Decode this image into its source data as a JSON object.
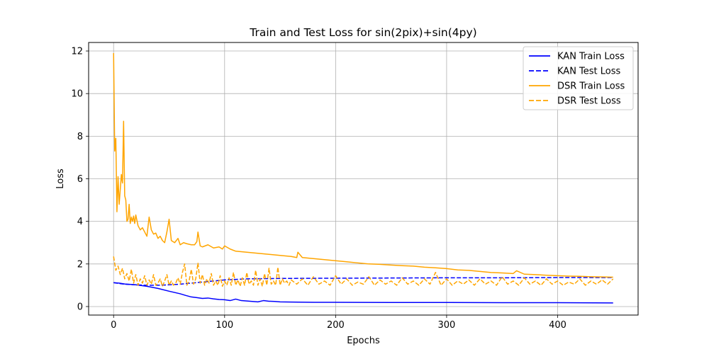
{
  "chart_data": {
    "type": "line",
    "title": "Train and Test Loss for sin(2pix)+sin(4py)",
    "xlabel": "Epochs",
    "ylabel": "Loss",
    "xlim": [
      -22.5,
      472.5
    ],
    "ylim": [
      -0.4,
      12.4
    ],
    "xticks": [
      0,
      100,
      200,
      300,
      400
    ],
    "yticks": [
      0,
      2,
      4,
      6,
      8,
      10,
      12
    ],
    "grid": true,
    "legend_position": "top-right",
    "series": [
      {
        "name": "KAN Train Loss",
        "color": "#0000ff",
        "style": "solid",
        "x": [
          0,
          5,
          10,
          20,
          30,
          40,
          50,
          60,
          65,
          70,
          75,
          80,
          85,
          90,
          95,
          100,
          105,
          110,
          115,
          120,
          125,
          130,
          135,
          140,
          145,
          150,
          160,
          180,
          200,
          250,
          300,
          350,
          400,
          450
        ],
        "y": [
          1.12,
          1.1,
          1.06,
          1.02,
          0.95,
          0.85,
          0.72,
          0.6,
          0.52,
          0.45,
          0.42,
          0.38,
          0.4,
          0.36,
          0.33,
          0.32,
          0.28,
          0.35,
          0.28,
          0.26,
          0.24,
          0.22,
          0.28,
          0.25,
          0.24,
          0.22,
          0.21,
          0.2,
          0.2,
          0.19,
          0.19,
          0.18,
          0.18,
          0.17
        ]
      },
      {
        "name": "KAN Test Loss",
        "color": "#0000ff",
        "style": "dashed",
        "x": [
          0,
          5,
          10,
          20,
          30,
          40,
          50,
          60,
          70,
          80,
          90,
          100,
          120,
          150,
          200,
          250,
          300,
          350,
          400,
          450
        ],
        "y": [
          1.12,
          1.08,
          1.05,
          1.02,
          1.0,
          1.0,
          1.02,
          1.05,
          1.1,
          1.15,
          1.2,
          1.25,
          1.3,
          1.32,
          1.33,
          1.34,
          1.35,
          1.35,
          1.36,
          1.36
        ]
      },
      {
        "name": "DSR Train Loss",
        "color": "#ffa500",
        "style": "solid",
        "x": [
          0,
          1,
          2,
          3,
          4,
          5,
          6,
          7,
          8,
          9,
          10,
          11,
          12,
          13,
          14,
          15,
          16,
          17,
          18,
          19,
          20,
          22,
          24,
          26,
          28,
          30,
          32,
          34,
          36,
          38,
          40,
          42,
          44,
          46,
          48,
          50,
          52,
          55,
          58,
          60,
          63,
          66,
          70,
          73,
          75,
          76,
          78,
          80,
          85,
          90,
          95,
          98,
          100,
          105,
          110,
          120,
          130,
          140,
          150,
          160,
          165,
          166,
          170,
          180,
          190,
          200,
          210,
          220,
          230,
          240,
          250,
          260,
          270,
          280,
          290,
          300,
          310,
          320,
          330,
          340,
          350,
          360,
          363,
          370,
          380,
          390,
          400,
          410,
          420,
          430,
          440,
          450
        ],
        "y": [
          11.9,
          7.3,
          7.9,
          4.45,
          6.1,
          4.8,
          5.5,
          6.2,
          5.8,
          8.7,
          5.2,
          5.0,
          4.0,
          4.1,
          4.8,
          3.9,
          4.2,
          4.0,
          4.25,
          3.9,
          4.3,
          3.8,
          3.6,
          3.7,
          3.5,
          3.3,
          4.2,
          3.6,
          3.4,
          3.45,
          3.2,
          3.3,
          3.1,
          3.0,
          3.5,
          4.1,
          3.1,
          3.0,
          3.2,
          2.9,
          3.0,
          2.95,
          2.9,
          2.9,
          3.05,
          3.5,
          2.85,
          2.8,
          2.9,
          2.75,
          2.8,
          2.7,
          2.85,
          2.7,
          2.6,
          2.55,
          2.5,
          2.45,
          2.4,
          2.35,
          2.3,
          2.55,
          2.3,
          2.25,
          2.2,
          2.15,
          2.1,
          2.05,
          2.0,
          1.98,
          1.95,
          1.92,
          1.9,
          1.85,
          1.82,
          1.78,
          1.72,
          1.7,
          1.65,
          1.6,
          1.58,
          1.55,
          1.68,
          1.52,
          1.5,
          1.47,
          1.45,
          1.43,
          1.42,
          1.4,
          1.39,
          1.38
        ]
      },
      {
        "name": "DSR Test Loss",
        "color": "#ffa500",
        "style": "dashed",
        "x": [
          0,
          2,
          4,
          6,
          8,
          10,
          12,
          14,
          16,
          18,
          20,
          22,
          24,
          26,
          28,
          30,
          32,
          34,
          36,
          38,
          40,
          42,
          44,
          46,
          48,
          50,
          52,
          54,
          56,
          58,
          60,
          62,
          64,
          66,
          68,
          70,
          72,
          74,
          76,
          78,
          80,
          82,
          84,
          86,
          88,
          90,
          92,
          94,
          96,
          98,
          100,
          102,
          104,
          106,
          108,
          110,
          112,
          114,
          116,
          118,
          120,
          122,
          124,
          126,
          128,
          130,
          132,
          134,
          136,
          138,
          140,
          142,
          144,
          146,
          148,
          150,
          152,
          154,
          156,
          158,
          160,
          165,
          170,
          175,
          180,
          185,
          190,
          195,
          200,
          205,
          210,
          215,
          220,
          225,
          230,
          235,
          240,
          245,
          250,
          255,
          260,
          265,
          270,
          275,
          280,
          285,
          290,
          295,
          300,
          305,
          310,
          315,
          320,
          325,
          330,
          335,
          340,
          345,
          350,
          355,
          360,
          365,
          370,
          375,
          380,
          385,
          390,
          395,
          400,
          405,
          410,
          415,
          420,
          425,
          430,
          435,
          440,
          445,
          450
        ],
        "y": [
          2.35,
          1.7,
          1.9,
          1.5,
          1.8,
          1.3,
          1.55,
          1.2,
          1.75,
          1.1,
          1.5,
          1.0,
          1.3,
          1.1,
          1.45,
          1.0,
          1.25,
          1.05,
          1.5,
          1.0,
          1.1,
          1.3,
          0.95,
          1.2,
          1.5,
          1.0,
          1.2,
          1.0,
          1.1,
          1.35,
          1.05,
          1.6,
          2.0,
          1.0,
          1.2,
          1.75,
          1.05,
          1.3,
          2.05,
          1.1,
          1.5,
          1.0,
          1.3,
          1.1,
          1.55,
          1.0,
          1.2,
          1.0,
          1.45,
          0.95,
          1.2,
          1.0,
          1.35,
          1.0,
          1.6,
          1.0,
          1.25,
          0.95,
          1.35,
          1.0,
          1.6,
          1.05,
          1.2,
          1.0,
          1.7,
          1.0,
          1.3,
          0.95,
          1.55,
          1.0,
          1.8,
          1.05,
          1.2,
          1.0,
          1.85,
          1.0,
          1.3,
          1.1,
          1.2,
          1.0,
          1.25,
          1.05,
          1.3,
          1.0,
          1.4,
          1.05,
          1.2,
          1.0,
          1.45,
          1.05,
          1.3,
          1.0,
          1.15,
          1.05,
          1.4,
          1.0,
          1.25,
          1.05,
          1.2,
          1.0,
          1.35,
          1.05,
          1.2,
          1.0,
          1.3,
          1.05,
          1.6,
          1.0,
          1.3,
          1.0,
          1.2,
          1.05,
          1.25,
          1.0,
          1.3,
          1.05,
          1.2,
          1.0,
          1.4,
          1.05,
          1.2,
          1.0,
          1.35,
          1.05,
          1.2,
          1.0,
          1.3,
          1.05,
          1.2,
          1.0,
          1.15,
          1.05,
          1.3,
          1.0,
          1.2,
          1.05,
          1.25,
          1.05,
          1.3
        ]
      }
    ]
  }
}
